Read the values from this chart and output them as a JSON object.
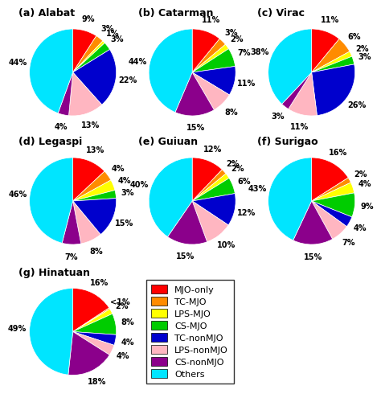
{
  "charts": [
    {
      "title": "(a) Alabat",
      "values": [
        9,
        3,
        1,
        3,
        22,
        13,
        4,
        44
      ],
      "labels": [
        "9%",
        "3%",
        "1%",
        "3%",
        "22%",
        "13%",
        "4%",
        "44%"
      ]
    },
    {
      "title": "(b) Catarman",
      "values": [
        11,
        3,
        2,
        7,
        11,
        8,
        15,
        44
      ],
      "labels": [
        "11%",
        "3%",
        "2%",
        "7%",
        "11%",
        "8%",
        "15%",
        "44%"
      ]
    },
    {
      "title": "(c) Virac",
      "values": [
        11,
        6,
        2,
        3,
        26,
        11,
        3,
        38
      ],
      "labels": [
        "11%",
        "6%",
        "2%",
        "3%",
        "26%",
        "11%",
        "3%",
        "38%"
      ]
    },
    {
      "title": "(d) Legaspi",
      "values": [
        13,
        4,
        4,
        3,
        15,
        8,
        7,
        46
      ],
      "labels": [
        "13%",
        "4%",
        "4%",
        "3%",
        "15%",
        "8%",
        "7%",
        "46%"
      ]
    },
    {
      "title": "(e) Guiuan",
      "values": [
        12,
        2,
        2,
        6,
        12,
        10,
        15,
        40
      ],
      "labels": [
        "12%",
        "2%",
        "2%",
        "6%",
        "12%",
        "10%",
        "15%",
        "40%"
      ]
    },
    {
      "title": "(f) Surigao",
      "values": [
        16,
        2,
        4,
        9,
        4,
        7,
        15,
        43
      ],
      "labels": [
        "16%",
        "2%",
        "4%",
        "9%",
        "4%",
        "7%",
        "15%",
        "43%"
      ]
    },
    {
      "title": "(g) Hinatuan",
      "values": [
        16,
        0.5,
        2,
        8,
        4,
        4,
        18,
        49
      ],
      "labels": [
        "16%",
        "<1%",
        "2%",
        "8%",
        "4%",
        "4%",
        "18%",
        "49%"
      ]
    }
  ],
  "colors": [
    "#ff0000",
    "#ff8c00",
    "#ffff00",
    "#00cc00",
    "#0000cd",
    "#ffb6c1",
    "#8b008b",
    "#00e5ff"
  ],
  "legend_labels": [
    "MJO-only",
    "TC-MJO",
    "LPS-MJO",
    "CS-MJO",
    "TC-nonMJO",
    "LPS-nonMJO",
    "CS-nonMJO",
    "Others"
  ],
  "title_fontsize": 9,
  "label_fontsize": 7,
  "legend_fontsize": 8
}
